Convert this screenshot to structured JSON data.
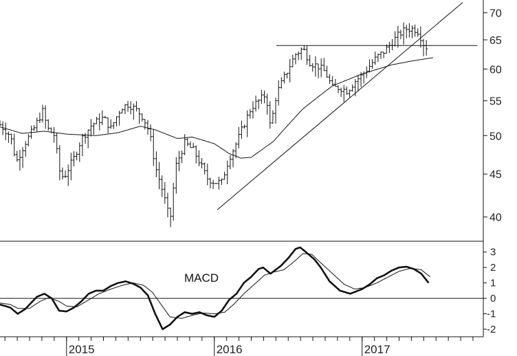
{
  "chart_data": [
    {
      "type": "ohlc",
      "title": "",
      "xlabel": "",
      "ylabel": "",
      "x_axis": {
        "min": 2014.55,
        "max": 2017.82,
        "year_labels": [
          {
            "label": "2015",
            "x": 2015.0
          },
          {
            "label": "2016",
            "x": 2016.0
          },
          {
            "label": "2017",
            "x": 2017.0
          }
        ],
        "minor_ticks_per_year": 12
      },
      "y_axis": {
        "scale": "log",
        "min": 37.5,
        "max": 72.5,
        "ticks": [
          "40",
          "45",
          "50",
          "55",
          "60",
          "65",
          "70"
        ],
        "grid": false,
        "side": "right"
      },
      "anchors": [
        [
          2014.55,
          51.5
        ],
        [
          2014.62,
          50
        ],
        [
          2014.66,
          46.5
        ],
        [
          2014.72,
          49
        ],
        [
          2014.78,
          51
        ],
        [
          2014.84,
          53.5
        ],
        [
          2014.87,
          51
        ],
        [
          2014.92,
          50
        ],
        [
          2014.95,
          45.5
        ],
        [
          2014.98,
          44.5
        ],
        [
          2015.05,
          47
        ],
        [
          2015.1,
          49.5
        ],
        [
          2015.17,
          51.5
        ],
        [
          2015.25,
          52.5
        ],
        [
          2015.3,
          51
        ],
        [
          2015.37,
          54
        ],
        [
          2015.42,
          54.5
        ],
        [
          2015.48,
          53.5
        ],
        [
          2015.52,
          52.5
        ],
        [
          2015.56,
          50.5
        ],
        [
          2015.6,
          46
        ],
        [
          2015.65,
          43
        ],
        [
          2015.7,
          39.5
        ],
        [
          2015.74,
          46
        ],
        [
          2015.8,
          49
        ],
        [
          2015.86,
          48
        ],
        [
          2015.9,
          46.5
        ],
        [
          2015.95,
          44.5
        ],
        [
          2016.0,
          44
        ],
        [
          2016.05,
          44
        ],
        [
          2016.1,
          47
        ],
        [
          2016.15,
          49
        ],
        [
          2016.2,
          51.5
        ],
        [
          2016.25,
          54
        ],
        [
          2016.3,
          55
        ],
        [
          2016.35,
          56
        ],
        [
          2016.38,
          51
        ],
        [
          2016.42,
          56
        ],
        [
          2016.46,
          58
        ],
        [
          2016.5,
          60
        ],
        [
          2016.55,
          62.5
        ],
        [
          2016.6,
          63.5
        ],
        [
          2016.65,
          61
        ],
        [
          2016.7,
          60.5
        ],
        [
          2016.75,
          59.5
        ],
        [
          2016.8,
          57
        ],
        [
          2016.85,
          57
        ],
        [
          2016.9,
          56.5
        ],
        [
          2016.95,
          58
        ],
        [
          2017.0,
          59
        ],
        [
          2017.05,
          60.5
        ],
        [
          2017.1,
          62
        ],
        [
          2017.15,
          63
        ],
        [
          2017.2,
          64.5
        ],
        [
          2017.25,
          66
        ],
        [
          2017.3,
          67
        ],
        [
          2017.35,
          67
        ],
        [
          2017.38,
          66.5
        ],
        [
          2017.42,
          64
        ],
        [
          2017.45,
          63.5
        ]
      ],
      "moving_average": [
        [
          2014.55,
          51.2
        ],
        [
          2014.7,
          50.3
        ],
        [
          2014.85,
          50.6
        ],
        [
          2015.0,
          50.2
        ],
        [
          2015.2,
          50.0
        ],
        [
          2015.35,
          50.4
        ],
        [
          2015.5,
          51.3
        ],
        [
          2015.6,
          50.8
        ],
        [
          2015.75,
          49.6
        ],
        [
          2015.85,
          49.8
        ],
        [
          2016.0,
          48.9
        ],
        [
          2016.1,
          47.6
        ],
        [
          2016.18,
          47.0
        ],
        [
          2016.25,
          47.1
        ],
        [
          2016.4,
          49.2
        ],
        [
          2016.6,
          53.8
        ],
        [
          2016.8,
          57.3
        ],
        [
          2017.0,
          59.2
        ],
        [
          2017.2,
          60.7
        ],
        [
          2017.35,
          61.4
        ],
        [
          2017.48,
          61.9
        ]
      ],
      "trendlines": [
        {
          "type": "uptrend",
          "from": [
            2016.02,
            40.8
          ],
          "to": [
            2017.68,
            72.0
          ]
        },
        {
          "type": "horizontal",
          "value": 64.0,
          "x_from": 2016.42,
          "x_to": 2017.78
        }
      ]
    },
    {
      "type": "line",
      "title": "MACD",
      "y_axis": {
        "min": -2.4,
        "max": 3.7,
        "ticks": [
          "-2",
          "-1",
          "0",
          "1",
          "2",
          "3"
        ],
        "zero_line": true,
        "side": "right"
      },
      "series": [
        {
          "values": [
            [
              2014.55,
              -0.4
            ],
            [
              2014.62,
              -0.6
            ],
            [
              2014.67,
              -1.0
            ],
            [
              2014.72,
              -0.7
            ],
            [
              2014.8,
              0.1
            ],
            [
              2014.85,
              0.3
            ],
            [
              2014.9,
              0.0
            ],
            [
              2014.95,
              -0.8
            ],
            [
              2015.0,
              -0.85
            ],
            [
              2015.05,
              -0.6
            ],
            [
              2015.1,
              -0.2
            ],
            [
              2015.15,
              0.3
            ],
            [
              2015.2,
              0.5
            ],
            [
              2015.25,
              0.5
            ],
            [
              2015.3,
              0.8
            ],
            [
              2015.35,
              1.0
            ],
            [
              2015.4,
              1.1
            ],
            [
              2015.45,
              0.95
            ],
            [
              2015.5,
              0.7
            ],
            [
              2015.55,
              0.2
            ],
            [
              2015.6,
              -1.0
            ],
            [
              2015.65,
              -2.0
            ],
            [
              2015.7,
              -1.7
            ],
            [
              2015.75,
              -1.2
            ],
            [
              2015.8,
              -0.9
            ],
            [
              2015.85,
              -1.0
            ],
            [
              2015.9,
              -0.9
            ],
            [
              2015.95,
              -1.1
            ],
            [
              2016.0,
              -1.2
            ],
            [
              2016.05,
              -0.8
            ],
            [
              2016.1,
              -0.1
            ],
            [
              2016.15,
              0.3
            ],
            [
              2016.2,
              1.0
            ],
            [
              2016.25,
              1.4
            ],
            [
              2016.3,
              1.9
            ],
            [
              2016.33,
              2.0
            ],
            [
              2016.38,
              1.6
            ],
            [
              2016.45,
              2.1
            ],
            [
              2016.5,
              2.6
            ],
            [
              2016.55,
              3.2
            ],
            [
              2016.58,
              3.3
            ],
            [
              2016.62,
              3.0
            ],
            [
              2016.68,
              2.5
            ],
            [
              2016.72,
              2.0
            ],
            [
              2016.78,
              1.1
            ],
            [
              2016.85,
              0.5
            ],
            [
              2016.92,
              0.3
            ],
            [
              2017.0,
              0.6
            ],
            [
              2017.05,
              0.9
            ],
            [
              2017.1,
              1.3
            ],
            [
              2017.15,
              1.5
            ],
            [
              2017.2,
              1.8
            ],
            [
              2017.25,
              2.0
            ],
            [
              2017.3,
              2.05
            ],
            [
              2017.35,
              1.9
            ],
            [
              2017.4,
              1.6
            ],
            [
              2017.45,
              1.0
            ]
          ]
        },
        {
          "values": [
            [
              2014.55,
              -0.3
            ],
            [
              2014.62,
              -0.4
            ],
            [
              2014.67,
              -0.65
            ],
            [
              2014.75,
              -0.65
            ],
            [
              2014.82,
              -0.2
            ],
            [
              2014.88,
              0.05
            ],
            [
              2014.95,
              -0.2
            ],
            [
              2015.0,
              -0.5
            ],
            [
              2015.07,
              -0.55
            ],
            [
              2015.15,
              -0.1
            ],
            [
              2015.22,
              0.3
            ],
            [
              2015.3,
              0.6
            ],
            [
              2015.38,
              0.85
            ],
            [
              2015.45,
              1.0
            ],
            [
              2015.52,
              0.85
            ],
            [
              2015.58,
              0.4
            ],
            [
              2015.64,
              -0.4
            ],
            [
              2015.7,
              -1.2
            ],
            [
              2015.78,
              -1.3
            ],
            [
              2015.85,
              -1.1
            ],
            [
              2015.92,
              -0.95
            ],
            [
              2016.0,
              -1.0
            ],
            [
              2016.07,
              -0.9
            ],
            [
              2016.13,
              -0.4
            ],
            [
              2016.2,
              0.3
            ],
            [
              2016.27,
              0.9
            ],
            [
              2016.34,
              1.5
            ],
            [
              2016.4,
              1.7
            ],
            [
              2016.47,
              1.85
            ],
            [
              2016.53,
              2.3
            ],
            [
              2016.6,
              2.9
            ],
            [
              2016.66,
              2.85
            ],
            [
              2016.72,
              2.3
            ],
            [
              2016.8,
              1.6
            ],
            [
              2016.88,
              0.9
            ],
            [
              2016.95,
              0.6
            ],
            [
              2017.02,
              0.7
            ],
            [
              2017.1,
              1.0
            ],
            [
              2017.18,
              1.4
            ],
            [
              2017.25,
              1.75
            ],
            [
              2017.33,
              1.95
            ],
            [
              2017.4,
              1.85
            ],
            [
              2017.46,
              1.4
            ]
          ]
        }
      ]
    }
  ]
}
